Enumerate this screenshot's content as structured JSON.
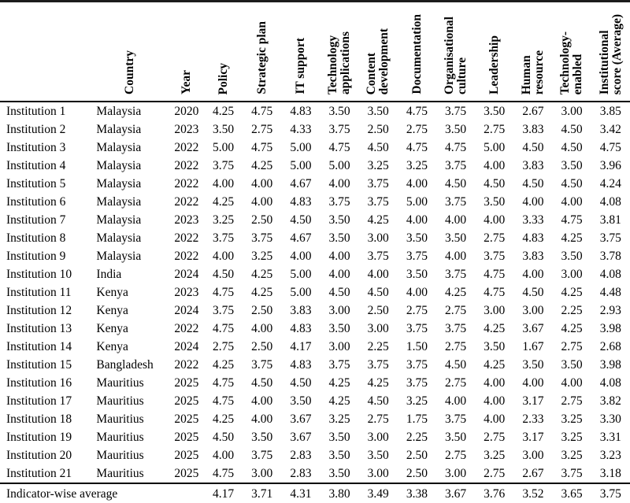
{
  "table": {
    "columns": [
      {
        "key": "institution",
        "label": ""
      },
      {
        "key": "country",
        "label": "Country"
      },
      {
        "key": "year",
        "label": "Year"
      },
      {
        "key": "policy",
        "label": "Policy"
      },
      {
        "key": "strategic_plan",
        "label": "Strategic plan"
      },
      {
        "key": "it_support",
        "label": "IT support"
      },
      {
        "key": "technology_applications",
        "label": "Technology\napplications"
      },
      {
        "key": "content_development",
        "label": "Content\ndevelopment"
      },
      {
        "key": "documentation",
        "label": "Documentation"
      },
      {
        "key": "organisational_culture",
        "label": "Organisational\nculture"
      },
      {
        "key": "leadership",
        "label": "Leadership"
      },
      {
        "key": "human_resource",
        "label": "Human\nresource"
      },
      {
        "key": "technology_enabled",
        "label": "Technology-\nenabled"
      },
      {
        "key": "institutional_score",
        "label": "Institutional\nscore (Average)"
      }
    ],
    "rows": [
      [
        "Institution 1",
        "Malaysia",
        "2020",
        "4.25",
        "4.75",
        "4.83",
        "3.50",
        "3.50",
        "4.75",
        "3.75",
        "3.50",
        "2.67",
        "3.00",
        "3.85"
      ],
      [
        "Institution 2",
        "Malaysia",
        "2023",
        "3.50",
        "2.75",
        "4.33",
        "3.75",
        "2.50",
        "2.75",
        "3.50",
        "2.75",
        "3.83",
        "4.50",
        "3.42"
      ],
      [
        "Institution 3",
        "Malaysia",
        "2022",
        "5.00",
        "4.75",
        "5.00",
        "4.75",
        "4.50",
        "4.75",
        "4.75",
        "5.00",
        "4.50",
        "4.50",
        "4.75"
      ],
      [
        "Institution 4",
        "Malaysia",
        "2022",
        "3.75",
        "4.25",
        "5.00",
        "5.00",
        "3.25",
        "3.25",
        "3.75",
        "4.00",
        "3.83",
        "3.50",
        "3.96"
      ],
      [
        "Institution 5",
        "Malaysia",
        "2022",
        "4.00",
        "4.00",
        "4.67",
        "4.00",
        "3.75",
        "4.00",
        "4.50",
        "4.50",
        "4.50",
        "4.50",
        "4.24"
      ],
      [
        "Institution 6",
        "Malaysia",
        "2022",
        "4.25",
        "4.00",
        "4.83",
        "3.75",
        "3.75",
        "5.00",
        "3.75",
        "3.50",
        "4.00",
        "4.00",
        "4.08"
      ],
      [
        "Institution 7",
        "Malaysia",
        "2023",
        "3.25",
        "2.50",
        "4.50",
        "3.50",
        "4.25",
        "4.00",
        "4.00",
        "4.00",
        "3.33",
        "4.75",
        "3.81"
      ],
      [
        "Institution 8",
        "Malaysia",
        "2022",
        "3.75",
        "3.75",
        "4.67",
        "3.50",
        "3.00",
        "3.50",
        "3.50",
        "2.75",
        "4.83",
        "4.25",
        "3.75"
      ],
      [
        "Institution 9",
        "Malaysia",
        "2022",
        "4.00",
        "3.25",
        "4.00",
        "4.00",
        "3.75",
        "3.75",
        "4.00",
        "3.75",
        "3.83",
        "3.50",
        "3.78"
      ],
      [
        "Institution 10",
        "India",
        "2024",
        "4.50",
        "4.25",
        "5.00",
        "4.00",
        "4.00",
        "3.50",
        "3.75",
        "4.75",
        "4.00",
        "3.00",
        "4.08"
      ],
      [
        "Institution 11",
        "Kenya",
        "2023",
        "4.75",
        "4.25",
        "5.00",
        "4.50",
        "4.50",
        "4.00",
        "4.25",
        "4.75",
        "4.50",
        "4.25",
        "4.48"
      ],
      [
        "Institution 12",
        "Kenya",
        "2024",
        "3.75",
        "2.50",
        "3.83",
        "3.00",
        "2.50",
        "2.75",
        "2.75",
        "3.00",
        "3.00",
        "2.25",
        "2.93"
      ],
      [
        "Institution 13",
        "Kenya",
        "2022",
        "4.75",
        "4.00",
        "4.83",
        "3.50",
        "3.00",
        "3.75",
        "3.75",
        "4.25",
        "3.67",
        "4.25",
        "3.98"
      ],
      [
        "Institution 14",
        "Kenya",
        "2024",
        "2.75",
        "2.50",
        "4.17",
        "3.00",
        "2.25",
        "1.50",
        "2.75",
        "3.50",
        "1.67",
        "2.75",
        "2.68"
      ],
      [
        "Institution 15",
        "Bangladesh",
        "2022",
        "4.25",
        "3.75",
        "4.83",
        "3.75",
        "3.75",
        "3.75",
        "4.50",
        "4.25",
        "3.50",
        "3.50",
        "3.98"
      ],
      [
        "Institution 16",
        "Mauritius",
        "2025",
        "4.75",
        "4.50",
        "4.50",
        "4.25",
        "4.25",
        "3.75",
        "2.75",
        "4.00",
        "4.00",
        "4.00",
        "4.08"
      ],
      [
        "Institution 17",
        "Mauritius",
        "2025",
        "4.75",
        "4.00",
        "3.50",
        "4.25",
        "4.50",
        "3.25",
        "4.00",
        "4.00",
        "3.17",
        "2.75",
        "3.82"
      ],
      [
        "Institution 18",
        "Mauritius",
        "2025",
        "4.25",
        "4.00",
        "3.67",
        "3.25",
        "2.75",
        "1.75",
        "3.75",
        "4.00",
        "2.33",
        "3.25",
        "3.30"
      ],
      [
        "Institution 19",
        "Mauritius",
        "2025",
        "4.50",
        "3.50",
        "3.67",
        "3.50",
        "3.00",
        "2.25",
        "3.50",
        "2.75",
        "3.17",
        "3.25",
        "3.31"
      ],
      [
        "Institution 20",
        "Mauritius",
        "2025",
        "4.00",
        "3.75",
        "2.83",
        "3.50",
        "3.50",
        "2.50",
        "2.75",
        "3.25",
        "3.00",
        "3.25",
        "3.23"
      ],
      [
        "Institution 21",
        "Mauritius",
        "2025",
        "4.75",
        "3.00",
        "2.83",
        "3.50",
        "3.00",
        "2.50",
        "3.00",
        "2.75",
        "2.67",
        "3.75",
        "3.18"
      ]
    ],
    "footer": {
      "label": "Indicator-wise average",
      "values": [
        "4.17",
        "3.71",
        "4.31",
        "3.80",
        "3.49",
        "3.38",
        "3.67",
        "3.76",
        "3.52",
        "3.65",
        "3.75"
      ]
    }
  }
}
